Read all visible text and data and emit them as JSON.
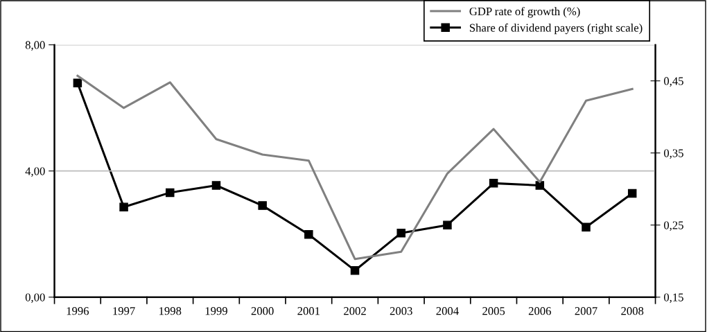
{
  "chart_data": {
    "type": "line",
    "categories": [
      "1996",
      "1997",
      "1998",
      "1999",
      "2000",
      "2001",
      "2002",
      "2003",
      "2004",
      "2005",
      "2006",
      "2007",
      "2008"
    ],
    "series": [
      {
        "name": "GDP rate of growth (%)",
        "color": "#808080",
        "marker": "none",
        "values": [
          7.02,
          6.0,
          6.81,
          5.01,
          4.52,
          4.33,
          1.21,
          1.44,
          3.92,
          5.33,
          3.65,
          6.23,
          6.6
        ]
      },
      {
        "name": "Share of dividend payers (right scale)",
        "color": "#000000",
        "marker": "square",
        "axis": "y2",
        "values": [
          0.447,
          0.275,
          0.295,
          0.305,
          0.277,
          0.237,
          0.187,
          0.239,
          0.25,
          0.308,
          0.305,
          0.247,
          0.294
        ]
      }
    ],
    "ylim": [
      0,
      8
    ],
    "yticks": [
      {
        "value": 0,
        "label": "0,00"
      },
      {
        "value": 4,
        "label": "4,00"
      },
      {
        "value": 8,
        "label": "8,00"
      }
    ],
    "y2lim": [
      0.15,
      0.5
    ],
    "y2ticks": [
      {
        "value": 0.15,
        "label": "0,15"
      },
      {
        "value": 0.25,
        "label": "0,25"
      },
      {
        "value": 0.35,
        "label": "0,35"
      },
      {
        "value": 0.45,
        "label": "0,45"
      }
    ],
    "grid": "y",
    "legend": "top right"
  }
}
